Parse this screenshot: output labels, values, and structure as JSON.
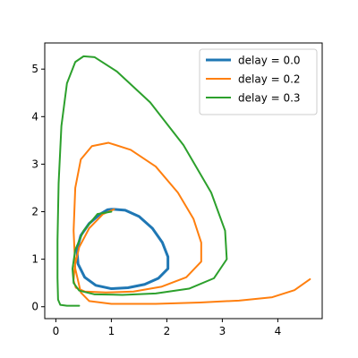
{
  "chart_data": {
    "type": "line",
    "title": "",
    "xlabel": "",
    "ylabel": "",
    "xlim": [
      -0.2,
      4.8
    ],
    "ylim": [
      -0.25,
      5.55
    ],
    "xticks": [
      0,
      1,
      2,
      3,
      4
    ],
    "yticks": [
      0,
      1,
      2,
      3,
      4,
      5
    ],
    "grid": false,
    "legend": "top-right",
    "series": [
      {
        "name": "delay = 0.0",
        "color": "#1f77b4",
        "x": [
          1.0,
          0.93,
          0.8,
          0.6,
          0.45,
          0.38,
          0.4,
          0.52,
          0.72,
          1.0,
          1.3,
          1.6,
          1.85,
          2.02,
          2.02,
          1.92,
          1.74,
          1.5,
          1.25,
          1.05,
          1.0
        ],
        "y": [
          2.05,
          2.04,
          1.95,
          1.75,
          1.5,
          1.2,
          0.9,
          0.62,
          0.45,
          0.38,
          0.4,
          0.47,
          0.6,
          0.8,
          1.05,
          1.35,
          1.65,
          1.9,
          2.03,
          2.05,
          2.05
        ]
      },
      {
        "name": "delay = 0.2",
        "color": "#ff7f0e",
        "x": [
          1.05,
          0.85,
          0.6,
          0.42,
          0.34,
          0.32,
          0.36,
          0.52,
          0.9,
          1.4,
          1.9,
          2.35,
          2.62,
          2.62,
          2.48,
          2.2,
          1.8,
          1.35,
          0.95,
          0.65,
          0.45,
          0.35,
          0.32,
          0.35,
          0.45,
          0.6,
          1.0,
          1.8,
          2.6,
          3.3,
          3.9,
          4.3,
          4.58
        ],
        "y": [
          2.05,
          1.95,
          1.65,
          1.25,
          0.85,
          0.55,
          0.4,
          0.32,
          0.3,
          0.32,
          0.42,
          0.62,
          0.95,
          1.35,
          1.85,
          2.4,
          2.95,
          3.3,
          3.45,
          3.38,
          3.1,
          2.5,
          1.6,
          0.8,
          0.3,
          0.12,
          0.06,
          0.06,
          0.09,
          0.13,
          0.2,
          0.35,
          0.58
        ]
      },
      {
        "name": "delay = 0.3",
        "color": "#2ca02c",
        "x": [
          1.0,
          0.75,
          0.5,
          0.35,
          0.3,
          0.32,
          0.42,
          0.7,
          1.2,
          1.8,
          2.4,
          2.85,
          3.08,
          3.05,
          2.8,
          2.3,
          1.7,
          1.1,
          0.7,
          0.5,
          0.35,
          0.2,
          0.1,
          0.05,
          0.03,
          0.03,
          0.04,
          0.08,
          0.2,
          0.42
        ],
        "y": [
          2.0,
          1.95,
          1.6,
          1.2,
          0.8,
          0.5,
          0.34,
          0.26,
          0.25,
          0.28,
          0.38,
          0.6,
          1.0,
          1.6,
          2.4,
          3.4,
          4.3,
          4.95,
          5.25,
          5.27,
          5.15,
          4.7,
          3.8,
          2.6,
          1.4,
          0.6,
          0.15,
          0.04,
          0.02,
          0.02
        ]
      }
    ]
  }
}
